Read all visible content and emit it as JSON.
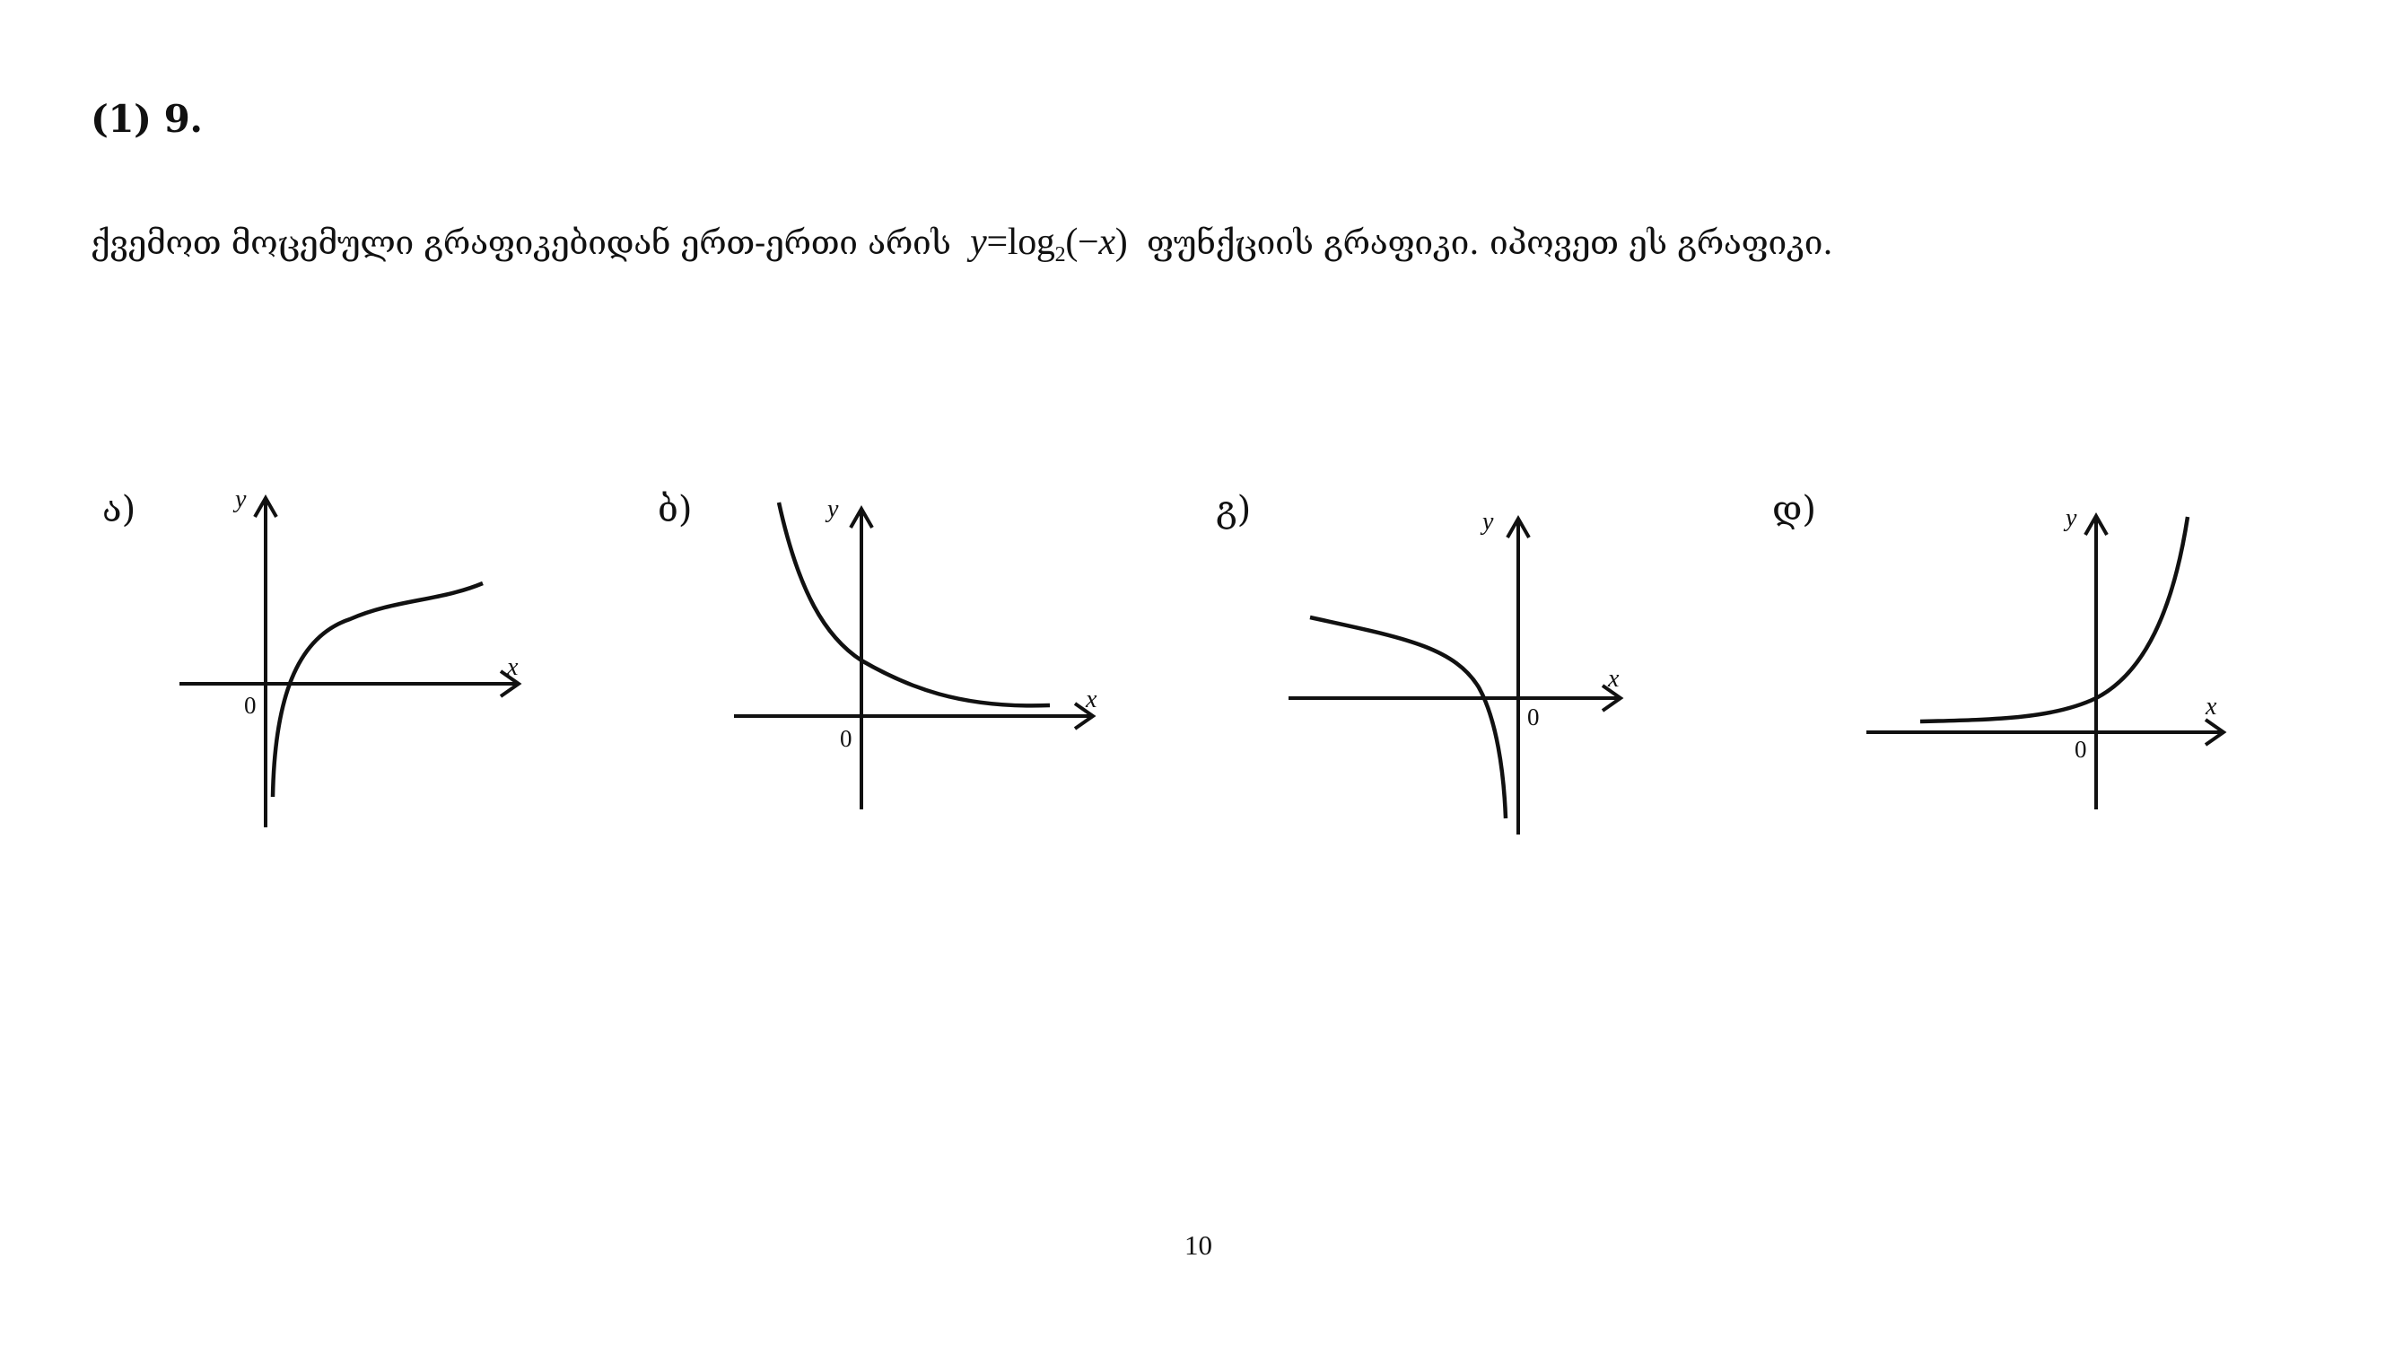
{
  "problem": {
    "number": "(1) 9.",
    "text_before": "ქვემოთ მოცემული გრაფიკებიდან ერთ-ერთი არის",
    "formula": {
      "lhs": "y",
      "eq": "=",
      "func": "log",
      "base": "2",
      "arg_open": "(−",
      "arg_var": "x",
      "arg_close": ")"
    },
    "text_after": "ფუნქციის გრაფიკი. იპოვეთ ეს გრაფიკი."
  },
  "options": [
    {
      "label": "ა)",
      "x_axis": "x",
      "y_axis": "y",
      "origin": "0"
    },
    {
      "label": "ბ)",
      "x_axis": "x",
      "y_axis": "y",
      "origin": "0"
    },
    {
      "label": "გ)",
      "x_axis": "x",
      "y_axis": "y",
      "origin": "0"
    },
    {
      "label": "დ)",
      "x_axis": "x",
      "y_axis": "y",
      "origin": "0"
    }
  ],
  "page_number": "10"
}
